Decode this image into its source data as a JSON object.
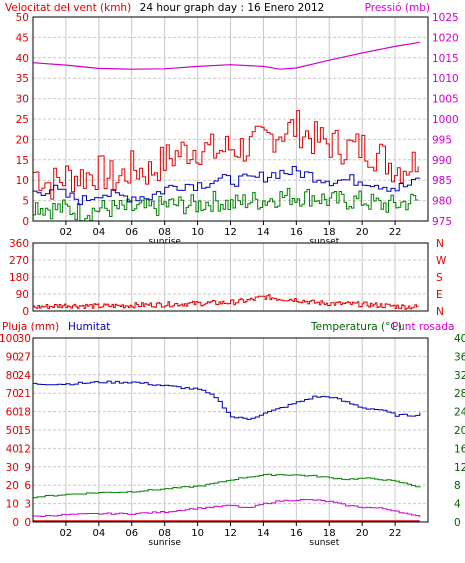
{
  "title": "24 hour graph day : 16 Enero 2012",
  "colors": {
    "frame": "#000000",
    "grid": "#c8c8c8",
    "red": "#e00000",
    "blue": "#0000b4",
    "green": "#008000",
    "magenta": "#d000d0",
    "dark_green": "#006400"
  },
  "x_ticks": [
    "02",
    "04",
    "06",
    "08",
    "10",
    "12",
    "14",
    "16",
    "18",
    "20",
    "22"
  ],
  "sunrise_label": "sunrise",
  "sunset_label": "sunset",
  "sunrise_hour": 8,
  "sunset_hour": 17.7,
  "chart_data": [
    {
      "type": "line",
      "panel": "wind-pressure",
      "left_axis_label": "Velocitat del vent (kmh)",
      "right_axis_label": "Pressió (mb)",
      "left_ticks": [
        "0",
        "5",
        "10",
        "15",
        "20",
        "25",
        "30",
        "35",
        "40",
        "45",
        "50"
      ],
      "right_ticks": [
        "975",
        "980",
        "985",
        "990",
        "995",
        "1000",
        "1005",
        "1010",
        "1015",
        "1020",
        "1025"
      ],
      "ylim_left": [
        0,
        50
      ],
      "ylim_right": [
        975,
        1025
      ],
      "x_range_hours": [
        0,
        24
      ],
      "series": [
        {
          "axis": "right",
          "color": "magenta",
          "x": [
            0,
            2,
            4,
            6,
            8,
            10,
            12,
            14,
            15,
            16,
            18,
            20,
            22,
            23.5
          ],
          "values": [
            1013.8,
            1013.2,
            1012.4,
            1012.2,
            1012.3,
            1012.9,
            1013.3,
            1012.9,
            1012.2,
            1012.5,
            1014.4,
            1016.2,
            1017.8,
            1018.8
          ]
        },
        {
          "axis": "left",
          "color": "red",
          "x": [
            0,
            1,
            2,
            3,
            4,
            5,
            6,
            7,
            8,
            9,
            10,
            11,
            12,
            13,
            14,
            15,
            16,
            17,
            18,
            19,
            20,
            21,
            22,
            23,
            23.5
          ],
          "values": [
            12,
            9,
            11,
            11,
            12,
            10,
            13,
            12,
            15,
            17,
            18,
            17,
            18,
            18,
            20,
            22,
            23,
            20,
            19,
            18,
            18,
            16,
            13,
            14,
            17
          ]
        },
        {
          "axis": "left",
          "color": "blue",
          "x": [
            0,
            1,
            2,
            3,
            4,
            5,
            6,
            7,
            8,
            9,
            10,
            11,
            12,
            13,
            14,
            15,
            16,
            17,
            18,
            19,
            20,
            21,
            22,
            23,
            23.5
          ],
          "values": [
            7,
            8,
            6,
            5,
            7,
            6,
            6,
            6,
            8,
            9,
            9,
            10,
            10,
            10,
            11,
            12,
            12,
            11,
            10,
            10,
            10,
            9,
            8,
            9,
            11
          ]
        },
        {
          "axis": "left",
          "color": "green",
          "x": [
            0,
            1,
            2,
            3,
            4,
            5,
            6,
            7,
            8,
            9,
            10,
            11,
            12,
            13,
            14,
            15,
            16,
            17,
            18,
            19,
            20,
            21,
            22,
            23,
            23.5
          ],
          "values": [
            4,
            3,
            3,
            2,
            3,
            3,
            3,
            3,
            4,
            4,
            4,
            5,
            4,
            5,
            5,
            6,
            6,
            6,
            5,
            5,
            5,
            4,
            4,
            5,
            5
          ]
        }
      ]
    },
    {
      "type": "scatter",
      "panel": "wind-direction",
      "left_ticks": [
        "0",
        "90",
        "180",
        "270",
        "360"
      ],
      "right_ticks": [
        "N",
        "E",
        "S",
        "W",
        "N"
      ],
      "ylim": [
        0,
        360
      ],
      "series": [
        {
          "color": "red",
          "x": [
            0,
            2,
            4,
            6,
            8,
            10,
            12,
            13,
            14,
            15,
            16,
            17,
            18,
            20,
            22,
            23.5
          ],
          "values": [
            20,
            30,
            25,
            30,
            35,
            40,
            45,
            55,
            75,
            65,
            60,
            45,
            40,
            35,
            25,
            20
          ]
        }
      ]
    },
    {
      "type": "line",
      "panel": "rain-humidity-temperature",
      "left_axis_label": "Pluja (mm)",
      "left2_axis_label": "Humitat",
      "right_axis_label": "Temperatura (°C)",
      "right2_axis_label": "Punt rosada",
      "left_ticks": [
        "0",
        "10",
        "20",
        "30",
        "40",
        "50",
        "60",
        "70",
        "80",
        "90",
        "100"
      ],
      "left2_ticks": [
        "0",
        "3",
        "6",
        "9",
        "12",
        "15",
        "18",
        "21",
        "24",
        "27",
        "30"
      ],
      "right_ticks": [
        "0",
        "4",
        "8",
        "12",
        "16",
        "20",
        "24",
        "28",
        "32",
        "36",
        "40"
      ],
      "ylim_humidity": [
        0,
        100
      ],
      "ylim_temperature": [
        0,
        40
      ],
      "series": [
        {
          "name": "Humitat",
          "axis": "humidity",
          "color": "blue",
          "x": [
            0,
            2,
            4,
            6,
            8,
            10,
            11,
            12,
            13,
            14,
            15,
            16,
            17,
            18,
            19,
            20,
            21,
            22,
            23,
            23.5
          ],
          "values": [
            75,
            75,
            76,
            76,
            74,
            72,
            68,
            57,
            56,
            59,
            62,
            65,
            68,
            68,
            65,
            62,
            61,
            58,
            58,
            59
          ]
        },
        {
          "name": "Temperatura (°C)",
          "axis": "temperature",
          "color": "green",
          "x": [
            0,
            2,
            4,
            6,
            8,
            10,
            11,
            12,
            13,
            14,
            15,
            16,
            17,
            18,
            19,
            20,
            21,
            22,
            23,
            23.5
          ],
          "values": [
            5.4,
            6.0,
            6.4,
            6.6,
            7.2,
            7.8,
            8.4,
            9.2,
            9.8,
            10.2,
            10.3,
            10.2,
            10.0,
            9.6,
            9.3,
            9.5,
            9.3,
            8.8,
            8.0,
            7.5
          ]
        },
        {
          "name": "Punt rosada",
          "axis": "temperature",
          "color": "magenta",
          "x": [
            0,
            2,
            4,
            6,
            8,
            10,
            11,
            12,
            13,
            14,
            15,
            16,
            17,
            18,
            19,
            20,
            21,
            22,
            23,
            23.5
          ],
          "values": [
            1.2,
            1.6,
            1.8,
            1.8,
            2.2,
            3.0,
            3.3,
            3.6,
            3.0,
            4.0,
            4.6,
            4.8,
            4.8,
            4.4,
            3.6,
            3.2,
            3.0,
            2.4,
            1.4,
            1.2
          ]
        },
        {
          "name": "Pluja (mm)",
          "axis": "rain",
          "color": "red",
          "x": [
            0,
            23.5
          ],
          "values": [
            0,
            0
          ]
        }
      ]
    }
  ]
}
